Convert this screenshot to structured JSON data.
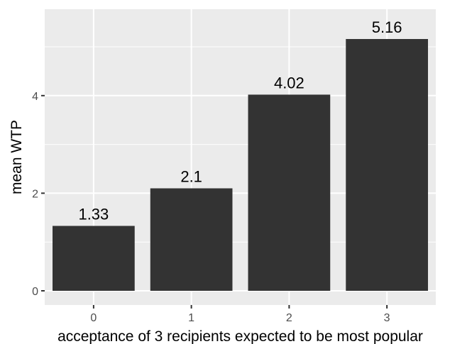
{
  "chart_data": {
    "type": "bar",
    "categories": [
      "0",
      "1",
      "2",
      "3"
    ],
    "values": [
      1.33,
      2.1,
      4.02,
      5.16
    ],
    "data_labels": [
      "1.33",
      "2.1",
      "4.02",
      "5.16"
    ],
    "xlabel": "acceptance of 3 recipients expected to be most popular",
    "ylabel": "mean WTP",
    "ylim": [
      0,
      5.16
    ],
    "yticks": [
      0,
      2,
      4
    ],
    "grid": true,
    "colors": {
      "panel": "#ebebeb",
      "grid": "#ffffff",
      "bar": "#333333",
      "tick_text": "#4d4d4d",
      "tick_mark": "#333333"
    }
  }
}
